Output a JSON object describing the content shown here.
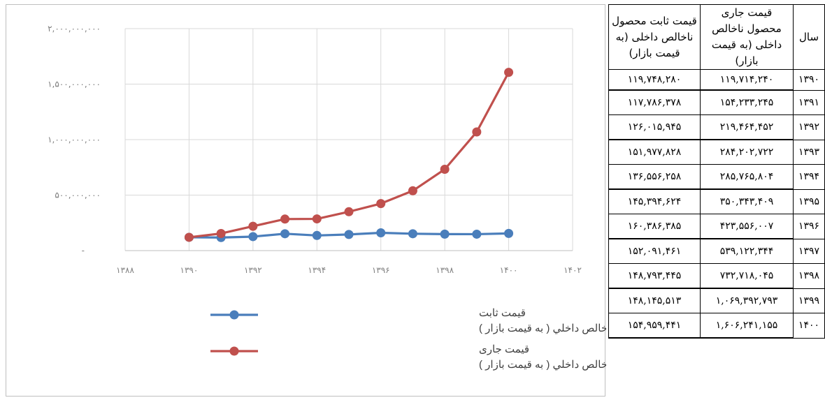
{
  "chart_data": {
    "type": "line",
    "x": [
      1390,
      1391,
      1392,
      1393,
      1394,
      1395,
      1396,
      1397,
      1398,
      1399,
      1400
    ],
    "xlim": [
      1388,
      1402
    ],
    "xticks": [
      "۱۳۸۸",
      "۱۳۹۰",
      "۱۳۹۲",
      "۱۳۹۴",
      "۱۳۹۶",
      "۱۳۹۸",
      "۱۴۰۰",
      "۱۴۰۲"
    ],
    "ylim": [
      0,
      2000000000
    ],
    "yticks": [
      "-",
      "۵۰۰,۰۰۰,۰۰۰",
      "۱,۰۰۰,۰۰۰,۰۰۰",
      "۱,۵۰۰,۰۰۰,۰۰۰",
      "۲,۰۰۰,۰۰۰,۰۰۰"
    ],
    "grid": true,
    "legend_position": "bottom",
    "series": [
      {
        "name_line1": "قيمت ثابت",
        "name_line2": "محصول ناخالص داخلي ( به قيمت بازار )",
        "color": "#4a7ebb",
        "values": [
          119748280,
          117786378,
          126015945,
          151977828,
          136556258,
          145394624,
          160386385,
          152091461,
          148793445,
          148145513,
          154959441
        ]
      },
      {
        "name_line1": "قيمت جاری",
        "name_line2": "محصول ناخالص داخلي ( به قيمت بازار )",
        "color": "#c0504d",
        "values": [
          119714240,
          154233245,
          219464452,
          284202722,
          285765804,
          350343409,
          423556007,
          539122344,
          732718045,
          1069392793,
          1606241155
        ]
      }
    ]
  },
  "table": {
    "headers": {
      "fixed": "قيمت ثابت محصول ناخالص داخلی (به قيمت بازار)",
      "current": "قيمت جاری محصول ناخالص داخلی (به قيمت بازار)",
      "year": "سال"
    },
    "rows": [
      {
        "fixed": "۱۱۹,۷۴۸,۲۸۰",
        "current": "۱۱۹,۷۱۴,۲۴۰",
        "year": "۱۳۹۰"
      },
      {
        "fixed": "۱۱۷,۷۸۶,۳۷۸",
        "current": "۱۵۴,۲۳۳,۲۴۵",
        "year": "۱۳۹۱"
      },
      {
        "fixed": "۱۲۶,۰۱۵,۹۴۵",
        "current": "۲۱۹,۴۶۴,۴۵۲",
        "year": "۱۳۹۲"
      },
      {
        "fixed": "۱۵۱,۹۷۷,۸۲۸",
        "current": "۲۸۴,۲۰۲,۷۲۲",
        "year": "۱۳۹۳"
      },
      {
        "fixed": "۱۳۶,۵۵۶,۲۵۸",
        "current": "۲۸۵,۷۶۵,۸۰۴",
        "year": "۱۳۹۴"
      },
      {
        "fixed": "۱۴۵,۳۹۴,۶۲۴",
        "current": "۳۵۰,۳۴۳,۴۰۹",
        "year": "۱۳۹۵"
      },
      {
        "fixed": "۱۶۰,۳۸۶,۳۸۵",
        "current": "۴۲۳,۵۵۶,۰۰۷",
        "year": "۱۳۹۶"
      },
      {
        "fixed": "۱۵۲,۰۹۱,۴۶۱",
        "current": "۵۳۹,۱۲۲,۳۴۴",
        "year": "۱۳۹۷"
      },
      {
        "fixed": "۱۴۸,۷۹۳,۴۴۵",
        "current": "۷۳۲,۷۱۸,۰۴۵",
        "year": "۱۳۹۸"
      },
      {
        "fixed": "۱۴۸,۱۴۵,۵۱۳",
        "current": "۱,۰۶۹,۳۹۲,۷۹۳",
        "year": "۱۳۹۹"
      },
      {
        "fixed": "۱۵۴,۹۵۹,۴۴۱",
        "current": "۱,۶۰۶,۲۴۱,۱۵۵",
        "year": "۱۴۰۰"
      }
    ]
  }
}
